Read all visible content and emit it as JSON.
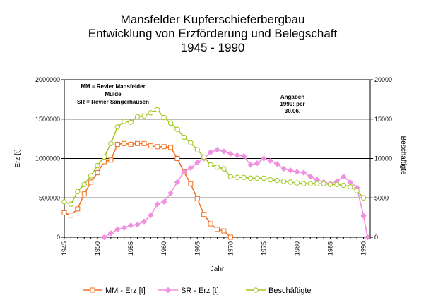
{
  "chart_data": {
    "type": "line",
    "title": [
      "Mansfelder Kupferschieferbergbau",
      "Entwicklung von Erzförderung und Belegschaft",
      "1945 - 1990"
    ],
    "xlabel": "Jahr",
    "ylabel_left": "Erz [t]",
    "ylabel_right": "Beschäftigte",
    "xlim": [
      1945,
      1991
    ],
    "x_ticks": [
      "1945",
      "1950",
      "1955",
      "1960",
      "1965",
      "1970",
      "1975",
      "1980",
      "1985",
      "1990"
    ],
    "ylim_left": [
      0,
      2000000
    ],
    "y_ticks_left": [
      "0",
      "500000",
      "1000000",
      "1500000",
      "2000000"
    ],
    "ylim_right": [
      0,
      20000
    ],
    "y_ticks_right": [
      "0",
      "5000",
      "10000",
      "15000",
      "20000"
    ],
    "grid": "horizontal",
    "legend_position": "bottom",
    "annotation_left": [
      "MM = Revier Mansfelder",
      "Mulde",
      "SR = Revier Sangerhausen"
    ],
    "annotation_right": [
      "Angaben",
      "1990: per",
      "30.06."
    ],
    "series": [
      {
        "name": "MM - Erz [t]",
        "axis": "left",
        "color": "#f07020",
        "marker": "square",
        "points": [
          [
            1945,
            310000
          ],
          [
            1946,
            280000
          ],
          [
            1947,
            360000
          ],
          [
            1948,
            550000
          ],
          [
            1949,
            700000
          ],
          [
            1950,
            820000
          ],
          [
            1951,
            960000
          ],
          [
            1952,
            980000
          ],
          [
            1953,
            1180000
          ],
          [
            1954,
            1190000
          ],
          [
            1955,
            1180000
          ],
          [
            1956,
            1190000
          ],
          [
            1957,
            1190000
          ],
          [
            1958,
            1160000
          ],
          [
            1959,
            1150000
          ],
          [
            1960,
            1150000
          ],
          [
            1961,
            1140000
          ],
          [
            1962,
            1000000
          ],
          [
            1963,
            830000
          ],
          [
            1964,
            680000
          ],
          [
            1965,
            490000
          ],
          [
            1966,
            290000
          ],
          [
            1967,
            170000
          ],
          [
            1968,
            100000
          ],
          [
            1969,
            80000
          ],
          [
            1970,
            0
          ]
        ]
      },
      {
        "name": "SR - Erz [t]",
        "axis": "left",
        "color": "#f090e0",
        "marker": "diamond",
        "points": [
          [
            1951,
            0
          ],
          [
            1952,
            50000
          ],
          [
            1953,
            100000
          ],
          [
            1954,
            120000
          ],
          [
            1955,
            150000
          ],
          [
            1956,
            160000
          ],
          [
            1957,
            200000
          ],
          [
            1958,
            280000
          ],
          [
            1959,
            420000
          ],
          [
            1960,
            450000
          ],
          [
            1961,
            560000
          ],
          [
            1962,
            700000
          ],
          [
            1963,
            830000
          ],
          [
            1964,
            880000
          ],
          [
            1965,
            950000
          ],
          [
            1966,
            1000000
          ],
          [
            1967,
            1080000
          ],
          [
            1968,
            1110000
          ],
          [
            1969,
            1090000
          ],
          [
            1970,
            1060000
          ],
          [
            1971,
            1040000
          ],
          [
            1972,
            1030000
          ],
          [
            1973,
            920000
          ],
          [
            1974,
            940000
          ],
          [
            1975,
            1000000
          ],
          [
            1976,
            970000
          ],
          [
            1977,
            930000
          ],
          [
            1978,
            870000
          ],
          [
            1979,
            850000
          ],
          [
            1980,
            830000
          ],
          [
            1981,
            820000
          ],
          [
            1982,
            770000
          ],
          [
            1983,
            730000
          ],
          [
            1984,
            700000
          ],
          [
            1985,
            680000
          ],
          [
            1986,
            710000
          ],
          [
            1987,
            770000
          ],
          [
            1988,
            700000
          ],
          [
            1989,
            630000
          ],
          [
            1990,
            270000
          ],
          [
            1990.6,
            0
          ]
        ]
      },
      {
        "name": "Beschäftigte",
        "axis": "right",
        "color": "#a0c820",
        "marker": "circle",
        "points": [
          [
            1945,
            4500
          ],
          [
            1946,
            4200
          ],
          [
            1947,
            5800
          ],
          [
            1948,
            6700
          ],
          [
            1949,
            7800
          ],
          [
            1950,
            9100
          ],
          [
            1951,
            10200
          ],
          [
            1952,
            11900
          ],
          [
            1953,
            14000
          ],
          [
            1954,
            14700
          ],
          [
            1955,
            14600
          ],
          [
            1956,
            15300
          ],
          [
            1957,
            15400
          ],
          [
            1958,
            15800
          ],
          [
            1959,
            16200
          ],
          [
            1960,
            15200
          ],
          [
            1961,
            14500
          ],
          [
            1962,
            13700
          ],
          [
            1963,
            12700
          ],
          [
            1964,
            12000
          ],
          [
            1965,
            11100
          ],
          [
            1966,
            10200
          ],
          [
            1967,
            9200
          ],
          [
            1968,
            8900
          ],
          [
            1969,
            8700
          ],
          [
            1970,
            7700
          ],
          [
            1971,
            7600
          ],
          [
            1972,
            7600
          ],
          [
            1973,
            7500
          ],
          [
            1974,
            7500
          ],
          [
            1975,
            7500
          ],
          [
            1976,
            7300
          ],
          [
            1977,
            7200
          ],
          [
            1978,
            7100
          ],
          [
            1979,
            7000
          ],
          [
            1980,
            6900
          ],
          [
            1981,
            6800
          ],
          [
            1982,
            6800
          ],
          [
            1983,
            6800
          ],
          [
            1984,
            6800
          ],
          [
            1985,
            6700
          ],
          [
            1986,
            6700
          ],
          [
            1987,
            6600
          ],
          [
            1988,
            6400
          ],
          [
            1989,
            5900
          ],
          [
            1990,
            5000
          ]
        ]
      }
    ]
  }
}
